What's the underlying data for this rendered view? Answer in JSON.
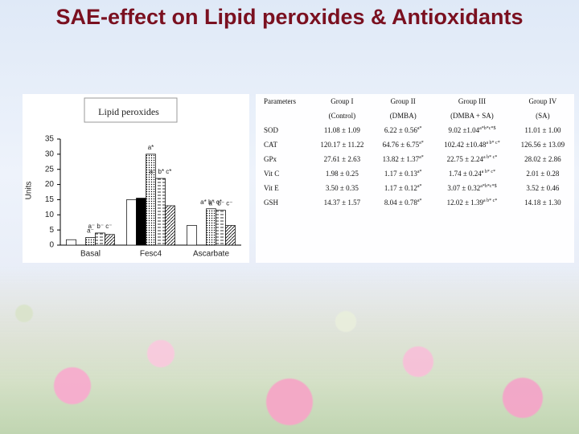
{
  "title": "SAE-effect on Lipid peroxides & Antioxidants",
  "chart_data": {
    "type": "bar",
    "title": "Lipid peroxides",
    "y_label": "Units",
    "categories": [
      "Basal",
      "Fesc4",
      "Ascarbate"
    ],
    "ylim": [
      0,
      35
    ],
    "yticks": [
      0,
      5,
      10,
      15,
      20,
      25,
      30,
      35
    ],
    "series": [
      {
        "fill": "white",
        "values": [
          1.8,
          15,
          6.5
        ]
      },
      {
        "fill": "black",
        "values": [
          null,
          15.5,
          null
        ]
      },
      {
        "fill": "dots",
        "values": [
          2.5,
          30,
          12
        ],
        "notes": [
          "a⁻",
          "a*",
          "a* b* c*"
        ]
      },
      {
        "fill": "dashes",
        "values": [
          4,
          22,
          11.5
        ],
        "notes": [
          "a⁻ b⁻ c⁻",
          "a⁻ b* c*",
          "a⁻ b⁻ c⁻"
        ]
      },
      {
        "fill": "hatch",
        "values": [
          3.5,
          13,
          6.5
        ]
      }
    ]
  },
  "table": {
    "header": [
      [
        "Parameters",
        ""
      ],
      [
        "Group I",
        "(Control)"
      ],
      [
        "Group II",
        "(DMBA)"
      ],
      [
        "Group III",
        "(DMBA + SA)"
      ],
      [
        "Group IV",
        "(SA)"
      ]
    ],
    "rows": [
      [
        {
          "text": "SOD"
        },
        {
          "text": "11.08 ± 1.09"
        },
        {
          "text": "6.22 ± 0.56",
          "sup": "a*"
        },
        {
          "text": "9.02 ±1.04",
          "sup": "a*b*c*$"
        },
        {
          "text": "11.01 ± 1.00"
        }
      ],
      [
        {
          "text": "CAT"
        },
        {
          "text": "120.17 ± 11.22"
        },
        {
          "text": "64.76 ± 6.75",
          "sup": "a*"
        },
        {
          "text": "102.42 ±10.48",
          "sup": "a b* c*"
        },
        {
          "text": "126.56 ± 13.09"
        }
      ],
      [
        {
          "text": "GPx"
        },
        {
          "text": "27.61 ± 2.63"
        },
        {
          "text": "13.82 ± 1.37",
          "sup": "a*"
        },
        {
          "text": "22.75 ± 2.24",
          "sup": "a b* c*"
        },
        {
          "text": "28.02 ± 2.86"
        }
      ],
      [
        {
          "text": "Vit C"
        },
        {
          "text": "1.98 ± 0.25"
        },
        {
          "text": "1.17 ± 0.13",
          "sup": "a*"
        },
        {
          "text": "1.74 ± 0.24",
          "sup": "a b* c*"
        },
        {
          "text": "2.01 ± 0.28"
        }
      ],
      [
        {
          "text": "Vit E"
        },
        {
          "text": "3.50 ± 0.35"
        },
        {
          "text": "1.17 ± 0.12",
          "sup": "a*"
        },
        {
          "text": "3.07 ± 0.32",
          "sup": "a*b*c*$"
        },
        {
          "text": "3.52 ± 0.46"
        }
      ],
      [
        {
          "text": "GSH"
        },
        {
          "text": "14.37 ± 1.57"
        },
        {
          "text": "8.04 ± 0.78",
          "sup": "a*"
        },
        {
          "text": "12.02 ± 1.39",
          "sup": "a b* c*"
        },
        {
          "text": "14.18 ± 1.30"
        }
      ]
    ]
  }
}
